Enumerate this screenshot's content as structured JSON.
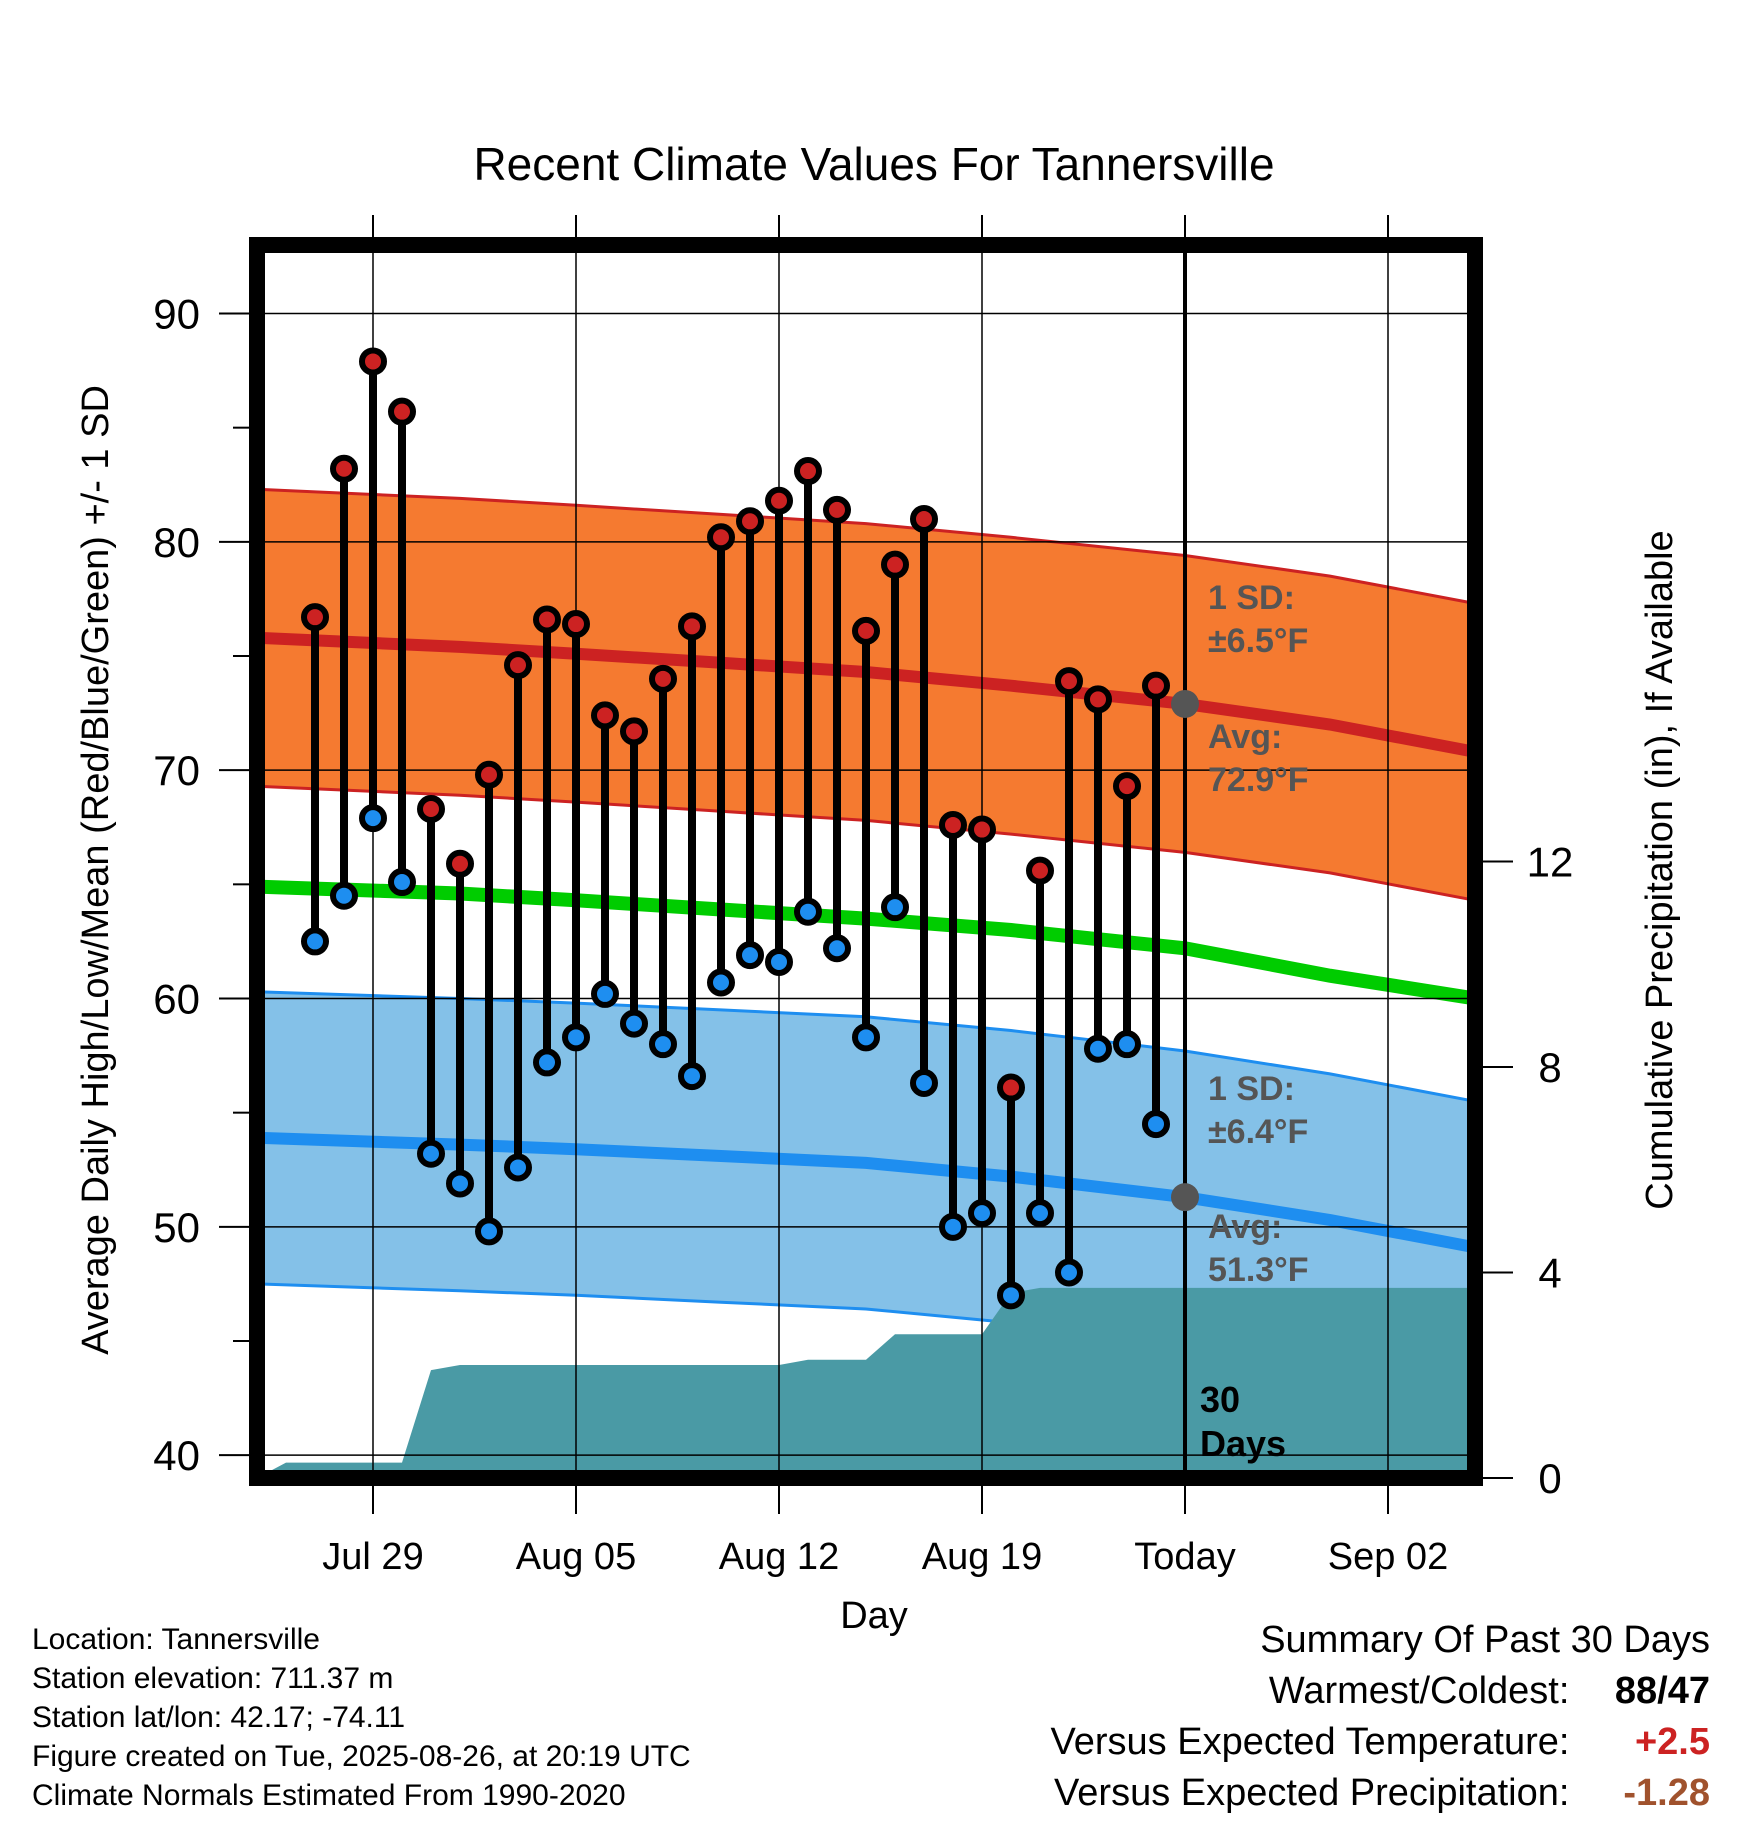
{
  "chart_data": {
    "type": "line",
    "title": "Recent Climate Values For Tannersville",
    "xlabel": "Day",
    "ylabel": "Average Daily High/Low/Mean (Red/Blue/Green) +/- 1 SD",
    "y2label": "Cumulative Precipitation (in), If Available",
    "ylim": [
      39,
      93
    ],
    "y2lim": [
      0,
      24
    ],
    "yticks": [
      40,
      50,
      60,
      70,
      80,
      90
    ],
    "y2ticks": [
      0,
      4,
      8,
      12
    ],
    "x_range": [
      "2025-07-25",
      "2025-09-05"
    ],
    "xtick_labels": [
      {
        "date": "2025-07-29",
        "label": "Jul 29"
      },
      {
        "date": "2025-08-05",
        "label": "Aug 05"
      },
      {
        "date": "2025-08-12",
        "label": "Aug 12"
      },
      {
        "date": "2025-08-19",
        "label": "Aug 19"
      },
      {
        "date": "2025-08-26",
        "label": "Today"
      },
      {
        "date": "2025-09-02",
        "label": "Sep 02"
      }
    ],
    "grid": true,
    "daily": [
      {
        "date": "2025-07-27",
        "high": 76.7,
        "low": 62.5
      },
      {
        "date": "2025-07-28",
        "high": 83.2,
        "low": 64.5
      },
      {
        "date": "2025-07-29",
        "high": 87.9,
        "low": 67.9
      },
      {
        "date": "2025-07-30",
        "high": 85.7,
        "low": 65.1
      },
      {
        "date": "2025-07-31",
        "high": 68.3,
        "low": 53.2
      },
      {
        "date": "2025-08-01",
        "high": 65.9,
        "low": 51.9
      },
      {
        "date": "2025-08-02",
        "high": 69.8,
        "low": 49.8
      },
      {
        "date": "2025-08-03",
        "high": 74.6,
        "low": 52.6
      },
      {
        "date": "2025-08-04",
        "high": 76.6,
        "low": 57.2
      },
      {
        "date": "2025-08-05",
        "high": 76.4,
        "low": 58.3
      },
      {
        "date": "2025-08-06",
        "high": 72.4,
        "low": 60.2
      },
      {
        "date": "2025-08-07",
        "high": 71.7,
        "low": 58.9
      },
      {
        "date": "2025-08-08",
        "high": 74.0,
        "low": 58.0
      },
      {
        "date": "2025-08-09",
        "high": 76.3,
        "low": 56.6
      },
      {
        "date": "2025-08-10",
        "high": 80.2,
        "low": 60.7
      },
      {
        "date": "2025-08-11",
        "high": 80.9,
        "low": 61.9
      },
      {
        "date": "2025-08-12",
        "high": 81.8,
        "low": 61.6
      },
      {
        "date": "2025-08-13",
        "high": 83.1,
        "low": 63.8
      },
      {
        "date": "2025-08-14",
        "high": 81.4,
        "low": 62.2
      },
      {
        "date": "2025-08-15",
        "high": 76.1,
        "low": 58.3
      },
      {
        "date": "2025-08-16",
        "high": 79.0,
        "low": 64.0
      },
      {
        "date": "2025-08-17",
        "high": 81.0,
        "low": 56.3
      },
      {
        "date": "2025-08-18",
        "high": 67.6,
        "low": 50.0
      },
      {
        "date": "2025-08-19",
        "high": 67.4,
        "low": 50.6
      },
      {
        "date": "2025-08-20",
        "high": 56.1,
        "low": 47.0
      },
      {
        "date": "2025-08-21",
        "high": 65.6,
        "low": 50.6
      },
      {
        "date": "2025-08-22",
        "high": 73.9,
        "low": 48.0
      },
      {
        "date": "2025-08-23",
        "high": 73.1,
        "low": 57.8
      },
      {
        "date": "2025-08-24",
        "high": 69.3,
        "low": 58.0
      },
      {
        "date": "2025-08-25",
        "high": 73.7,
        "low": 54.5
      }
    ],
    "normals": [
      {
        "date": "2025-07-25",
        "high": 75.8,
        "low": 53.9,
        "mean": 64.9
      },
      {
        "date": "2025-08-01",
        "high": 75.4,
        "low": 53.6,
        "mean": 64.6
      },
      {
        "date": "2025-08-05",
        "high": 75.1,
        "low": 53.4,
        "mean": 64.3
      },
      {
        "date": "2025-08-10",
        "high": 74.7,
        "low": 53.1,
        "mean": 63.9
      },
      {
        "date": "2025-08-15",
        "high": 74.3,
        "low": 52.8,
        "mean": 63.5
      },
      {
        "date": "2025-08-20",
        "high": 73.7,
        "low": 52.2,
        "mean": 63.0
      },
      {
        "date": "2025-08-26",
        "high": 72.9,
        "low": 51.3,
        "mean": 62.2
      },
      {
        "date": "2025-08-31",
        "high": 72.0,
        "low": 50.3,
        "mean": 61.0
      },
      {
        "date": "2025-09-05",
        "high": 70.8,
        "low": 49.1,
        "mean": 60.0
      }
    ],
    "high_sd": 6.5,
    "low_sd": 6.4,
    "cumulative_precip": [
      {
        "date": "2025-07-25",
        "value": 0.0
      },
      {
        "date": "2025-07-26",
        "value": 0.3
      },
      {
        "date": "2025-07-29",
        "value": 0.3
      },
      {
        "date": "2025-07-30",
        "value": 0.3
      },
      {
        "date": "2025-07-31",
        "value": 2.1
      },
      {
        "date": "2025-08-01",
        "value": 2.2
      },
      {
        "date": "2025-08-12",
        "value": 2.2
      },
      {
        "date": "2025-08-13",
        "value": 2.3
      },
      {
        "date": "2025-08-15",
        "value": 2.3
      },
      {
        "date": "2025-08-16",
        "value": 2.8
      },
      {
        "date": "2025-08-19",
        "value": 2.8
      },
      {
        "date": "2025-08-20",
        "value": 3.6
      },
      {
        "date": "2025-08-21",
        "value": 3.7
      },
      {
        "date": "2025-09-05",
        "value": 3.7
      }
    ],
    "annotations": {
      "high_sd_line1": "1 SD:",
      "high_sd_line2": "±6.5°F",
      "high_avg_line1": "Avg:",
      "high_avg_line2": "72.9°F",
      "low_sd_line1": "1 SD:",
      "low_sd_line2": "±6.4°F",
      "low_avg_line1": "Avg:",
      "low_avg_line2": "51.3°F",
      "days_line1": "30",
      "days_line2": "Days"
    },
    "colors": {
      "high": "#cc2222",
      "low": "#1e8ef0",
      "mean": "#00cc00",
      "high_band": "#f57a30",
      "low_band": "#84c1e8",
      "precip": "#4a9aa5",
      "annotation": "#555555"
    }
  },
  "footer": {
    "location": "Location: Tannersville",
    "elevation": "Station elevation: 711.37 m",
    "latlon": "Station lat/lon: 42.17; -74.11",
    "created": "Figure created on Tue, 2025-08-26, at 20:19 UTC",
    "normals": "Climate Normals Estimated From 1990-2020"
  },
  "summary": {
    "title": "Summary Of Past 30 Days",
    "warm_cold_label": "Warmest/Coldest:",
    "warmest": "88",
    "coldest": "47",
    "temp_label": "Versus Expected Temperature:",
    "temp_value": "+2.5",
    "temp_color": "#cc2222",
    "precip_label": "Versus Expected Precipitation:",
    "precip_value": "-1.28",
    "precip_color": "#a0522d"
  }
}
